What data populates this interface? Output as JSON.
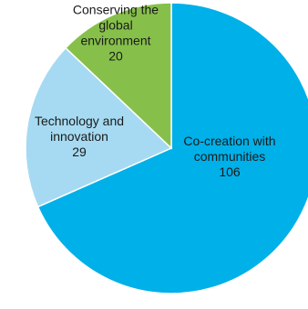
{
  "chart_data": {
    "type": "pie",
    "slices": [
      {
        "label_lines": [
          "Co-creation with",
          "communities"
        ],
        "value_text": "106",
        "value": 106,
        "color": "#00B0E8"
      },
      {
        "label_lines": [
          "Technology and",
          "innovation"
        ],
        "value_text": "29",
        "value": 29,
        "color": "#A6DAF2"
      },
      {
        "label_lines": [
          "Conserving the",
          "global",
          "environment"
        ],
        "value_text": "20",
        "value": 20,
        "color": "#86C04A"
      }
    ]
  }
}
